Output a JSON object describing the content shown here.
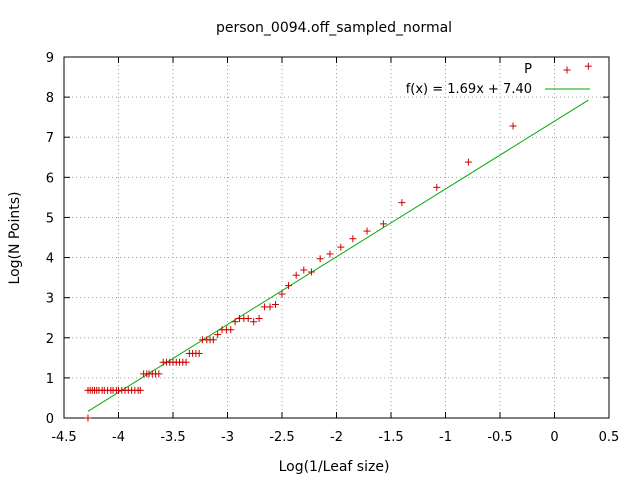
{
  "chart_data": {
    "type": "scatter",
    "title": "person_0094.off_sampled_normal",
    "xlabel": "Log(1/Leaf size)",
    "ylabel": "Log(N Points)",
    "xlim": [
      -4.5,
      0.5
    ],
    "ylim": [
      0,
      9
    ],
    "xticks": [
      "-4.5",
      "-4",
      "-3.5",
      "-3",
      "-2.5",
      "-2",
      "-1.5",
      "-1",
      "-0.5",
      "0",
      "0.5"
    ],
    "yticks": [
      "0",
      "1",
      "2",
      "3",
      "4",
      "5",
      "6",
      "7",
      "8",
      "9"
    ],
    "grid": true,
    "legend_position": "top-right",
    "series": [
      {
        "name": "P",
        "kind": "points",
        "marker": "plus",
        "color": "#cc0000",
        "points": [
          [
            -4.28,
            0.0
          ],
          [
            -4.28,
            0.69
          ],
          [
            -4.26,
            0.69
          ],
          [
            -4.24,
            0.69
          ],
          [
            -4.22,
            0.69
          ],
          [
            -4.2,
            0.69
          ],
          [
            -4.18,
            0.69
          ],
          [
            -4.15,
            0.69
          ],
          [
            -4.13,
            0.69
          ],
          [
            -4.1,
            0.69
          ],
          [
            -4.07,
            0.69
          ],
          [
            -4.05,
            0.69
          ],
          [
            -4.02,
            0.69
          ],
          [
            -4.0,
            0.69
          ],
          [
            -3.97,
            0.69
          ],
          [
            -3.94,
            0.69
          ],
          [
            -3.91,
            0.69
          ],
          [
            -3.88,
            0.69
          ],
          [
            -3.85,
            0.69
          ],
          [
            -3.82,
            0.69
          ],
          [
            -3.8,
            0.69
          ],
          [
            -3.77,
            1.1
          ],
          [
            -3.74,
            1.1
          ],
          [
            -3.72,
            1.1
          ],
          [
            -3.69,
            1.1
          ],
          [
            -3.66,
            1.1
          ],
          [
            -3.63,
            1.1
          ],
          [
            -3.59,
            1.39
          ],
          [
            -3.56,
            1.39
          ],
          [
            -3.53,
            1.39
          ],
          [
            -3.5,
            1.39
          ],
          [
            -3.47,
            1.39
          ],
          [
            -3.44,
            1.39
          ],
          [
            -3.41,
            1.39
          ],
          [
            -3.38,
            1.39
          ],
          [
            -3.35,
            1.61
          ],
          [
            -3.32,
            1.61
          ],
          [
            -3.29,
            1.61
          ],
          [
            -3.26,
            1.61
          ],
          [
            -3.23,
            1.95
          ],
          [
            -3.19,
            1.95
          ],
          [
            -3.16,
            1.95
          ],
          [
            -3.13,
            1.95
          ],
          [
            -3.09,
            2.08
          ],
          [
            -3.05,
            2.2
          ],
          [
            -3.01,
            2.2
          ],
          [
            -2.97,
            2.2
          ],
          [
            -2.93,
            2.4
          ],
          [
            -2.89,
            2.48
          ],
          [
            -2.85,
            2.48
          ],
          [
            -2.81,
            2.48
          ],
          [
            -2.76,
            2.4
          ],
          [
            -2.71,
            2.48
          ],
          [
            -2.66,
            2.77
          ],
          [
            -2.61,
            2.77
          ],
          [
            -2.56,
            2.83
          ],
          [
            -2.5,
            3.09
          ],
          [
            -2.44,
            3.3
          ],
          [
            -2.37,
            3.56
          ],
          [
            -2.3,
            3.69
          ],
          [
            -2.23,
            3.64
          ],
          [
            -2.15,
            3.97
          ],
          [
            -2.06,
            4.09
          ],
          [
            -1.96,
            4.26
          ],
          [
            -1.85,
            4.47
          ],
          [
            -1.72,
            4.66
          ],
          [
            -1.57,
            4.84
          ],
          [
            -1.4,
            5.37
          ],
          [
            -1.08,
            5.75
          ],
          [
            -0.79,
            6.38
          ],
          [
            -0.38,
            7.28
          ],
          [
            0.31,
            8.77
          ]
        ]
      },
      {
        "name": "f(x) = 1.69x + 7.40",
        "kind": "line",
        "color": "#00aa00",
        "slope": 1.69,
        "intercept": 7.4,
        "x_range": [
          -4.28,
          0.31
        ]
      }
    ]
  }
}
